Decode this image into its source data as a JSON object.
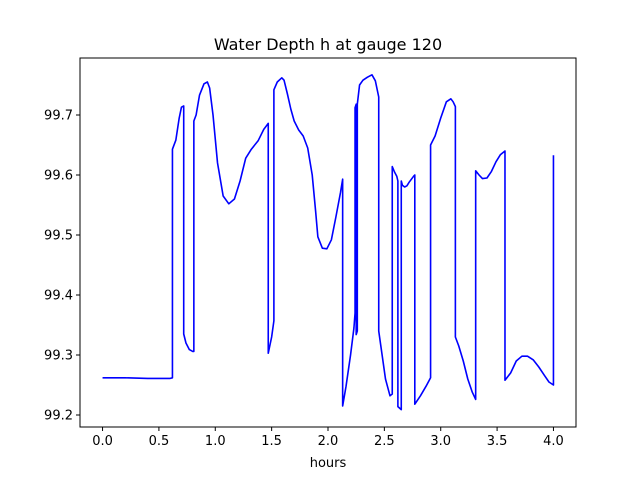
{
  "chart_data": {
    "type": "line",
    "title": "Water Depth h at gauge 120",
    "xlabel": "hours",
    "ylabel": "",
    "xlim": [
      -0.2,
      4.2
    ],
    "ylim": [
      99.18,
      99.795
    ],
    "xticks": [
      "0.0",
      "0.5",
      "1.0",
      "1.5",
      "2.0",
      "2.5",
      "3.0",
      "3.5",
      "4.0"
    ],
    "yticks": [
      "99.2",
      "99.3",
      "99.4",
      "99.5",
      "99.6",
      "99.7"
    ],
    "grid": false,
    "legend": "none",
    "series": [
      {
        "color": "#0000ff",
        "x": [
          0.0,
          0.2,
          0.4,
          0.6,
          0.62,
          0.62,
          0.65,
          0.68,
          0.7,
          0.72,
          0.72,
          0.74,
          0.77,
          0.8,
          0.81,
          0.81,
          0.83,
          0.86,
          0.9,
          0.93,
          0.95,
          0.98,
          1.02,
          1.07,
          1.12,
          1.17,
          1.22,
          1.27,
          1.32,
          1.38,
          1.43,
          1.47,
          1.47,
          1.5,
          1.52,
          1.52,
          1.55,
          1.59,
          1.61,
          1.64,
          1.67,
          1.7,
          1.74,
          1.78,
          1.82,
          1.86,
          1.89,
          1.91,
          1.95,
          1.99,
          2.03,
          2.07,
          2.11,
          2.13,
          2.13,
          2.16,
          2.2,
          2.23,
          2.24,
          2.24,
          2.25,
          2.25,
          2.26,
          2.26,
          2.28,
          2.31,
          2.35,
          2.39,
          2.42,
          2.45,
          2.45,
          2.48,
          2.51,
          2.55,
          2.57,
          2.57,
          2.59,
          2.61,
          2.62,
          2.62,
          2.65,
          2.65,
          2.66,
          2.68,
          2.7,
          2.72,
          2.74,
          2.76,
          2.77,
          2.77,
          2.82,
          2.87,
          2.91,
          2.91,
          2.95,
          3.0,
          3.05,
          3.09,
          3.11,
          3.13,
          3.13,
          3.16,
          3.2,
          3.24,
          3.28,
          3.31,
          3.31,
          3.34,
          3.37,
          3.41,
          3.45,
          3.49,
          3.53,
          3.57,
          3.57,
          3.62,
          3.67,
          3.72,
          3.77,
          3.82,
          3.87,
          3.92,
          3.96,
          4.0,
          4.0
        ],
        "y": [
          99.262,
          99.262,
          99.261,
          99.261,
          99.262,
          99.643,
          99.658,
          99.695,
          99.713,
          99.715,
          99.335,
          99.32,
          99.309,
          99.306,
          99.306,
          99.69,
          99.7,
          99.733,
          99.752,
          99.755,
          99.745,
          99.7,
          99.62,
          99.565,
          99.552,
          99.56,
          99.59,
          99.628,
          99.643,
          99.657,
          99.676,
          99.686,
          99.303,
          99.33,
          99.357,
          99.742,
          99.755,
          99.762,
          99.758,
          99.735,
          99.71,
          99.69,
          99.675,
          99.665,
          99.645,
          99.6,
          99.54,
          99.497,
          99.478,
          99.477,
          99.492,
          99.53,
          99.57,
          99.593,
          99.215,
          99.248,
          99.3,
          99.345,
          99.37,
          99.712,
          99.718,
          99.334,
          99.34,
          99.718,
          99.75,
          99.758,
          99.763,
          99.767,
          99.757,
          99.73,
          99.34,
          99.3,
          99.26,
          99.232,
          99.235,
          99.614,
          99.605,
          99.598,
          99.59,
          99.214,
          99.209,
          99.59,
          99.583,
          99.58,
          99.582,
          99.588,
          99.593,
          99.598,
          99.6,
          99.218,
          99.232,
          99.248,
          99.262,
          99.65,
          99.665,
          99.695,
          99.722,
          99.727,
          99.722,
          99.714,
          99.33,
          99.315,
          99.29,
          99.26,
          99.238,
          99.226,
          99.607,
          99.6,
          99.594,
          99.595,
          99.606,
          99.622,
          99.634,
          99.64,
          99.258,
          99.27,
          99.29,
          99.298,
          99.298,
          99.292,
          99.28,
          99.266,
          99.255,
          99.25,
          99.633
        ]
      }
    ]
  }
}
